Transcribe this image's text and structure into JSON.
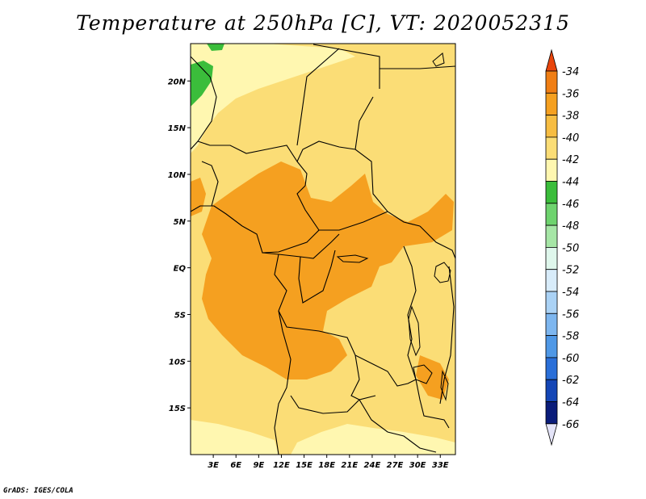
{
  "title": "Temperature at 250hPa [C], VT: 2020052315",
  "footer": "GrADS: IGES/COLA",
  "map": {
    "longitude_ticks": [
      "3E",
      "6E",
      "9E",
      "12E",
      "15E",
      "18E",
      "21E",
      "24E",
      "27E",
      "30E",
      "33E"
    ],
    "latitude_ticks": [
      "20N",
      "15N",
      "10N",
      "5N",
      "EQ",
      "5S",
      "10S",
      "15S"
    ],
    "lon_range": [
      0,
      35
    ],
    "lat_range": [
      -20,
      24
    ]
  },
  "colorbar": {
    "labels": [
      "-34",
      "-36",
      "-38",
      "-40",
      "-42",
      "-44",
      "-46",
      "-48",
      "-50",
      "-52",
      "-54",
      "-56",
      "-58",
      "-60",
      "-62",
      "-64",
      "-66"
    ],
    "colors": [
      "#e85a10",
      "#f07e14",
      "#f5a020",
      "#f7bd42",
      "#fbdd76",
      "#fff7b0",
      "#3bbd3b",
      "#6ed36e",
      "#a6e6a6",
      "#dff7ec",
      "#d8ecfa",
      "#aad2f5",
      "#7db6ef",
      "#4f98e6",
      "#2a6fd8",
      "#1446b6",
      "#0a1c7a",
      "#141460"
    ],
    "top_arrow_color": "#e8450c",
    "bottom_arrow_color": "#e4e4f8"
  }
}
